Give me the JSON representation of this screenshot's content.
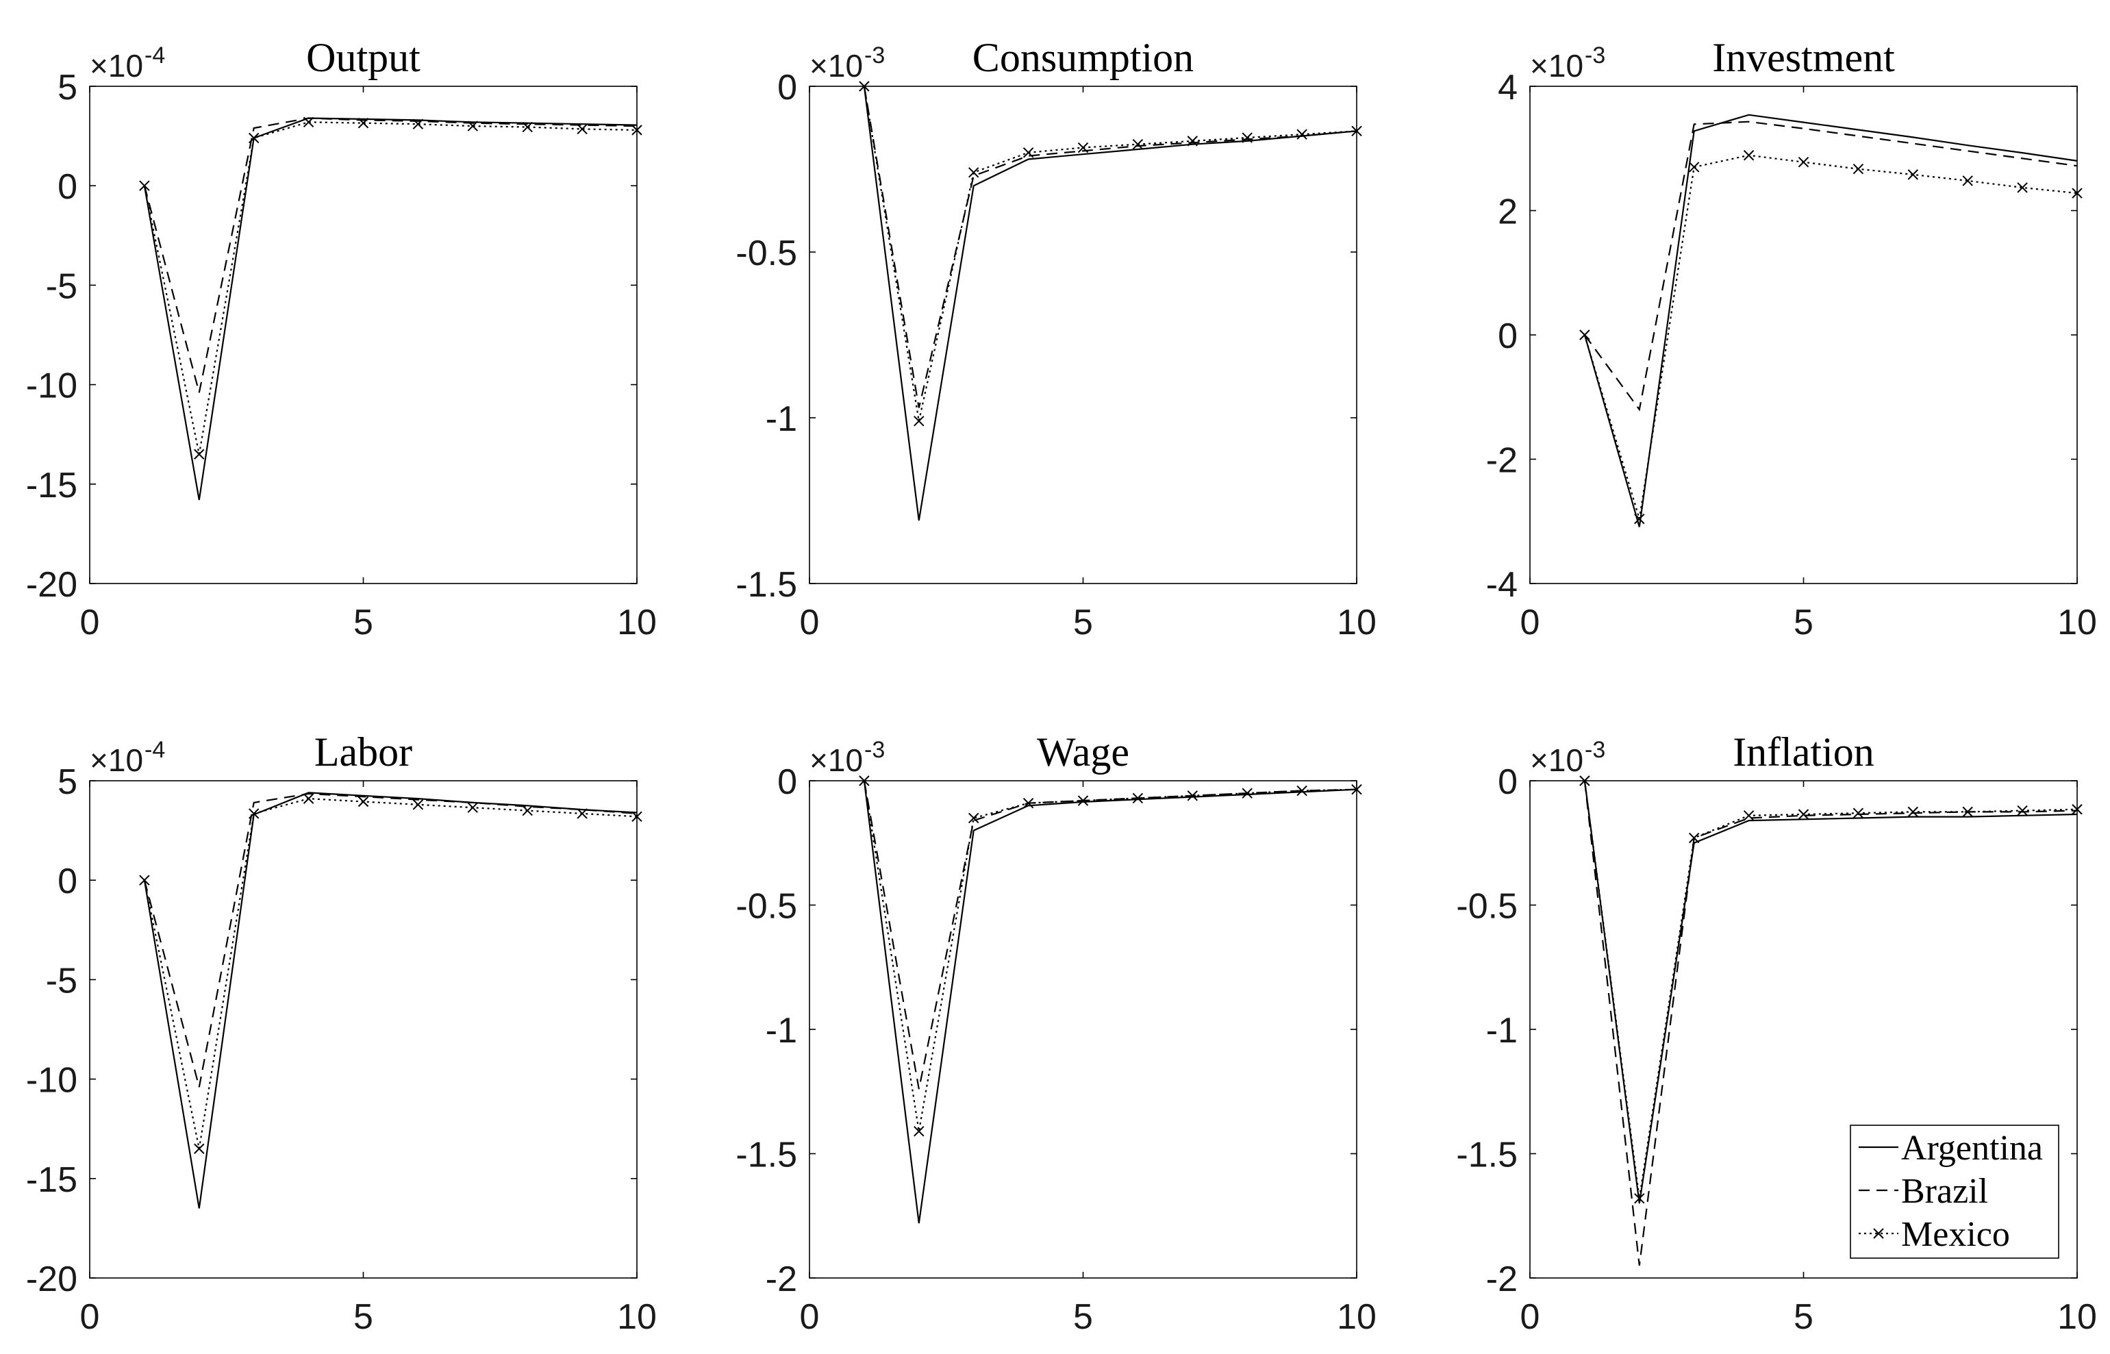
{
  "colors": {
    "lines": "#000000",
    "background": "#ffffff"
  },
  "chart_data": [
    {
      "type": "line",
      "title": "Output",
      "multiplier": "×10",
      "exponent": "-4",
      "x": [
        1,
        2,
        3,
        4,
        5,
        6,
        7,
        8,
        9,
        10
      ],
      "xlim": [
        0,
        10
      ],
      "ylim": [
        -20,
        5
      ],
      "xticks": [
        0,
        5,
        10
      ],
      "yticks": [
        5,
        0,
        -5,
        -10,
        -15,
        -20
      ],
      "grid": false,
      "series": [
        {
          "name": "Argentina",
          "line_style": "solid",
          "marker": "none",
          "values": [
            0,
            -15.8,
            2.4,
            3.4,
            3.35,
            3.3,
            3.2,
            3.15,
            3.1,
            3.05
          ]
        },
        {
          "name": "Brazil",
          "line_style": "dashed",
          "marker": "none",
          "values": [
            0,
            -10.4,
            2.9,
            3.4,
            3.3,
            3.25,
            3.15,
            3.1,
            3.05,
            3.0
          ]
        },
        {
          "name": "Mexico",
          "line_style": "dotted",
          "marker": "x",
          "values": [
            0,
            -13.5,
            2.4,
            3.2,
            3.15,
            3.1,
            3.0,
            2.95,
            2.85,
            2.8
          ]
        }
      ]
    },
    {
      "type": "line",
      "title": "Consumption",
      "multiplier": "×10",
      "exponent": "-3",
      "x": [
        1,
        2,
        3,
        4,
        5,
        6,
        7,
        8,
        9,
        10
      ],
      "xlim": [
        0,
        10
      ],
      "ylim": [
        -1.5,
        0
      ],
      "xticks": [
        0,
        5,
        10
      ],
      "yticks": [
        0,
        -0.5,
        -1,
        -1.5
      ],
      "grid": false,
      "series": [
        {
          "name": "Argentina",
          "line_style": "solid",
          "marker": "none",
          "values": [
            0,
            -1.31,
            -0.3,
            -0.22,
            -0.205,
            -0.19,
            -0.175,
            -0.165,
            -0.15,
            -0.135
          ]
        },
        {
          "name": "Brazil",
          "line_style": "dashed",
          "marker": "none",
          "values": [
            0,
            -0.97,
            -0.27,
            -0.21,
            -0.195,
            -0.18,
            -0.17,
            -0.16,
            -0.15,
            -0.135
          ]
        },
        {
          "name": "Mexico",
          "line_style": "dotted",
          "marker": "x",
          "values": [
            0,
            -1.01,
            -0.26,
            -0.2,
            -0.185,
            -0.175,
            -0.165,
            -0.155,
            -0.145,
            -0.135
          ]
        }
      ]
    },
    {
      "type": "line",
      "title": "Investment",
      "multiplier": "×10",
      "exponent": "-3",
      "x": [
        1,
        2,
        3,
        4,
        5,
        6,
        7,
        8,
        9,
        10
      ],
      "xlim": [
        0,
        10
      ],
      "ylim": [
        -4,
        4
      ],
      "xticks": [
        0,
        5,
        10
      ],
      "yticks": [
        4,
        2,
        0,
        -2,
        -4
      ],
      "grid": false,
      "series": [
        {
          "name": "Argentina",
          "line_style": "solid",
          "marker": "none",
          "values": [
            0,
            -3.09,
            3.28,
            3.54,
            3.42,
            3.3,
            3.18,
            3.05,
            2.93,
            2.8
          ]
        },
        {
          "name": "Brazil",
          "line_style": "dashed",
          "marker": "none",
          "values": [
            0,
            -1.2,
            3.39,
            3.43,
            3.32,
            3.2,
            3.08,
            2.96,
            2.84,
            2.72
          ]
        },
        {
          "name": "Mexico",
          "line_style": "dotted",
          "marker": "x",
          "values": [
            0,
            -2.96,
            2.7,
            2.89,
            2.78,
            2.67,
            2.58,
            2.48,
            2.37,
            2.28
          ]
        }
      ]
    },
    {
      "type": "line",
      "title": "Labor",
      "multiplier": "×10",
      "exponent": "-4",
      "x": [
        1,
        2,
        3,
        4,
        5,
        6,
        7,
        8,
        9,
        10
      ],
      "xlim": [
        0,
        10
      ],
      "ylim": [
        -20,
        5
      ],
      "xticks": [
        0,
        5,
        10
      ],
      "yticks": [
        5,
        0,
        -5,
        -10,
        -15,
        -20
      ],
      "grid": false,
      "series": [
        {
          "name": "Argentina",
          "line_style": "solid",
          "marker": "none",
          "values": [
            0,
            -16.5,
            3.3,
            4.4,
            4.25,
            4.1,
            3.9,
            3.75,
            3.55,
            3.4
          ]
        },
        {
          "name": "Brazil",
          "line_style": "dashed",
          "marker": "none",
          "values": [
            0,
            -10.4,
            3.9,
            4.35,
            4.2,
            4.05,
            3.9,
            3.7,
            3.55,
            3.35
          ]
        },
        {
          "name": "Mexico",
          "line_style": "dotted",
          "marker": "x",
          "values": [
            0,
            -13.5,
            3.35,
            4.1,
            3.95,
            3.8,
            3.65,
            3.5,
            3.35,
            3.2
          ]
        }
      ]
    },
    {
      "type": "line",
      "title": "Wage",
      "multiplier": "×10",
      "exponent": "-3",
      "x": [
        1,
        2,
        3,
        4,
        5,
        6,
        7,
        8,
        9,
        10
      ],
      "xlim": [
        0,
        10
      ],
      "ylim": [
        -2,
        0
      ],
      "xticks": [
        0,
        5,
        10
      ],
      "yticks": [
        0,
        -0.5,
        -1,
        -1.5,
        -2
      ],
      "grid": false,
      "series": [
        {
          "name": "Argentina",
          "line_style": "solid",
          "marker": "none",
          "values": [
            0,
            -1.78,
            -0.2,
            -0.1,
            -0.085,
            -0.075,
            -0.065,
            -0.055,
            -0.045,
            -0.035
          ]
        },
        {
          "name": "Brazil",
          "line_style": "dashed",
          "marker": "none",
          "values": [
            0,
            -1.24,
            -0.16,
            -0.09,
            -0.08,
            -0.07,
            -0.06,
            -0.05,
            -0.04,
            -0.035
          ]
        },
        {
          "name": "Mexico",
          "line_style": "dotted",
          "marker": "x",
          "values": [
            0,
            -1.41,
            -0.15,
            -0.09,
            -0.08,
            -0.07,
            -0.06,
            -0.05,
            -0.04,
            -0.035
          ]
        }
      ]
    },
    {
      "type": "line",
      "title": "Inflation",
      "multiplier": "×10",
      "exponent": "-3",
      "x": [
        1,
        2,
        3,
        4,
        5,
        6,
        7,
        8,
        9,
        10
      ],
      "xlim": [
        0,
        10
      ],
      "ylim": [
        -2,
        0
      ],
      "xticks": [
        0,
        5,
        10
      ],
      "yticks": [
        0,
        -0.5,
        -1,
        -1.5,
        -2
      ],
      "grid": false,
      "legend": {
        "placement": "bottom-right"
      },
      "series": [
        {
          "name": "Argentina",
          "line_style": "solid",
          "marker": "none",
          "values": [
            0,
            -1.7,
            -0.25,
            -0.16,
            -0.155,
            -0.15,
            -0.145,
            -0.145,
            -0.14,
            -0.135
          ]
        },
        {
          "name": "Brazil",
          "line_style": "dashed",
          "marker": "none",
          "values": [
            0,
            -1.95,
            -0.23,
            -0.15,
            -0.14,
            -0.135,
            -0.13,
            -0.125,
            -0.125,
            -0.12
          ]
        },
        {
          "name": "Mexico",
          "line_style": "dotted",
          "marker": "x",
          "values": [
            0,
            -1.68,
            -0.23,
            -0.14,
            -0.135,
            -0.13,
            -0.125,
            -0.125,
            -0.12,
            -0.115
          ]
        }
      ]
    }
  ]
}
